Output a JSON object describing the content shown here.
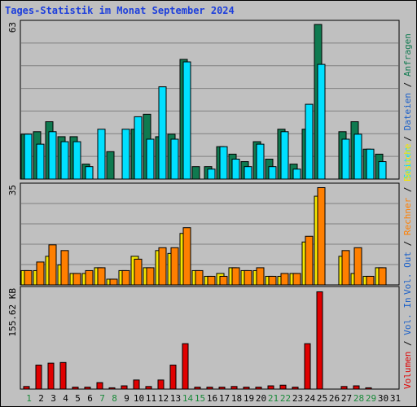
{
  "title": "Tages-Statistik im Monat September 2024",
  "colors": {
    "title": "#1c3edc",
    "anfragen": "#0f7a50",
    "dateien": "#1a5fc8",
    "seiten": "#00e0ff",
    "besuche": "#f5e600",
    "rechner": "#ff7f00",
    "volumen": "#e00000",
    "vol_out": "#1a5fc8",
    "weekend_label": "#1a8a3a",
    "weekday_label": "#000000"
  },
  "side_labels": {
    "top": [
      "Anfragen",
      "Dateien",
      "Seiten"
    ],
    "mid": [
      "Besuche",
      "Rechner",
      "Vol. Out"
    ],
    "bottom": [
      "Vol. In",
      "Volumen"
    ]
  },
  "chart_data": {
    "type": "bar",
    "categories": [
      "1",
      "2",
      "3",
      "4",
      "5",
      "6",
      "7",
      "8",
      "9",
      "10",
      "11",
      "12",
      "13",
      "14",
      "15",
      "16",
      "17",
      "18",
      "19",
      "20",
      "21",
      "22",
      "23",
      "24",
      "25",
      "26",
      "27",
      "28",
      "29",
      "30",
      "31"
    ],
    "weekend_days": [
      "1",
      "7",
      "8",
      "14",
      "15",
      "21",
      "22",
      "28",
      "29"
    ],
    "panels": [
      {
        "axis_max_label": "63",
        "ylim": [
          0,
          63
        ],
        "series": [
          {
            "name": "Anfragen",
            "values": [
              18,
              19,
              23,
              17,
              17,
              6,
              0,
              11,
              0,
              20,
              26,
              17,
              18,
              48,
              5,
              5,
              13,
              10,
              7,
              15,
              8,
              20,
              6,
              20,
              62,
              0,
              19,
              23,
              12,
              10,
              0
            ]
          },
          {
            "name": "Dateien",
            "values": [
              18,
              14,
              19,
              15,
              15,
              5,
              20,
              0,
              20,
              25,
              16,
              37,
              16,
              47,
              0,
              4,
              13,
              8,
              5,
              14,
              5,
              19,
              4,
              30,
              46,
              0,
              16,
              18,
              12,
              7,
              0
            ]
          },
          {
            "name": "Seiten",
            "values": [
              0,
              0,
              0,
              0,
              0,
              0,
              0,
              0,
              0,
              0,
              0,
              0,
              0,
              0,
              0,
              0,
              0,
              0,
              0,
              0,
              0,
              0,
              0,
              0,
              0,
              0,
              0,
              0,
              0,
              0,
              0
            ]
          }
        ]
      },
      {
        "axis_max_label": "35",
        "ylim": [
          0,
          35
        ],
        "series": [
          {
            "name": "Besuche",
            "values": [
              5,
              5,
              10,
              7,
              4,
              4,
              6,
              2,
              5,
              10,
              6,
              12,
              11,
              18,
              5,
              3,
              4,
              6,
              5,
              5,
              3,
              3,
              4,
              15,
              31,
              0,
              10,
              4,
              3,
              6,
              0
            ]
          },
          {
            "name": "Rechner",
            "values": [
              5,
              8,
              14,
              12,
              4,
              5,
              6,
              2,
              5,
              9,
              6,
              13,
              13,
              20,
              5,
              3,
              3,
              6,
              5,
              6,
              3,
              4,
              4,
              17,
              34,
              0,
              12,
              13,
              3,
              6,
              0
            ]
          },
          {
            "name": "Vol. Out",
            "values": [
              0,
              0,
              0,
              0,
              0,
              0,
              0,
              0,
              0,
              0,
              0,
              0,
              0,
              0,
              0,
              0,
              0,
              0,
              0,
              0,
              0,
              0,
              0,
              0,
              0,
              0,
              0,
              0,
              0,
              0,
              0
            ]
          }
        ]
      },
      {
        "axis_max_label": "155.62 KB",
        "ylim": [
          0,
          155.62
        ],
        "series": [
          {
            "name": "Volumen",
            "values": [
              4,
              37,
              40,
              41,
              3,
              3,
              10,
              2,
              5,
              14,
              4,
              14,
              37,
              70,
              3,
              3,
              3,
              4,
              3,
              3,
              5,
              6,
              3,
              70,
              150,
              0,
              4,
              5,
              2,
              0,
              0
            ]
          },
          {
            "name": "Vol. In",
            "values": [
              0,
              0,
              0,
              0,
              0,
              0,
              0,
              0,
              0,
              0,
              0,
              0,
              0,
              0,
              0,
              0,
              0,
              0,
              0,
              0,
              0,
              0,
              0,
              0,
              0,
              0,
              0,
              0,
              0,
              0,
              0
            ]
          }
        ]
      }
    ]
  }
}
